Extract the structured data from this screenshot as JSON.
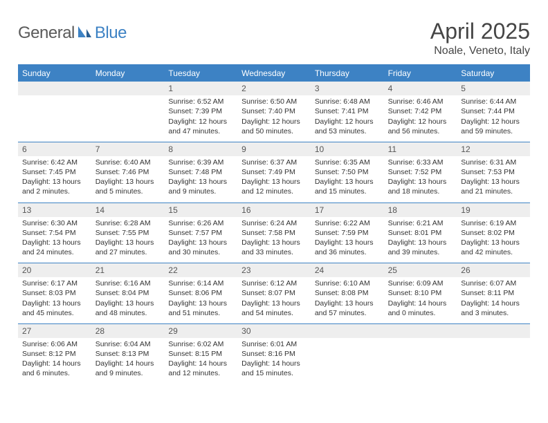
{
  "brand": {
    "part1": "General",
    "part2": "Blue"
  },
  "title": "April 2025",
  "location": "Noale, Veneto, Italy",
  "colors": {
    "accent": "#3d82c4",
    "header_gray": "#eeeeee",
    "text": "#333333",
    "muted": "#555555"
  },
  "weekday_labels": [
    "Sunday",
    "Monday",
    "Tuesday",
    "Wednesday",
    "Thursday",
    "Friday",
    "Saturday"
  ],
  "weeks": [
    [
      {
        "n": "",
        "t": ""
      },
      {
        "n": "",
        "t": ""
      },
      {
        "n": "1",
        "t": "Sunrise: 6:52 AM\nSunset: 7:39 PM\nDaylight: 12 hours and 47 minutes."
      },
      {
        "n": "2",
        "t": "Sunrise: 6:50 AM\nSunset: 7:40 PM\nDaylight: 12 hours and 50 minutes."
      },
      {
        "n": "3",
        "t": "Sunrise: 6:48 AM\nSunset: 7:41 PM\nDaylight: 12 hours and 53 minutes."
      },
      {
        "n": "4",
        "t": "Sunrise: 6:46 AM\nSunset: 7:42 PM\nDaylight: 12 hours and 56 minutes."
      },
      {
        "n": "5",
        "t": "Sunrise: 6:44 AM\nSunset: 7:44 PM\nDaylight: 12 hours and 59 minutes."
      }
    ],
    [
      {
        "n": "6",
        "t": "Sunrise: 6:42 AM\nSunset: 7:45 PM\nDaylight: 13 hours and 2 minutes."
      },
      {
        "n": "7",
        "t": "Sunrise: 6:40 AM\nSunset: 7:46 PM\nDaylight: 13 hours and 5 minutes."
      },
      {
        "n": "8",
        "t": "Sunrise: 6:39 AM\nSunset: 7:48 PM\nDaylight: 13 hours and 9 minutes."
      },
      {
        "n": "9",
        "t": "Sunrise: 6:37 AM\nSunset: 7:49 PM\nDaylight: 13 hours and 12 minutes."
      },
      {
        "n": "10",
        "t": "Sunrise: 6:35 AM\nSunset: 7:50 PM\nDaylight: 13 hours and 15 minutes."
      },
      {
        "n": "11",
        "t": "Sunrise: 6:33 AM\nSunset: 7:52 PM\nDaylight: 13 hours and 18 minutes."
      },
      {
        "n": "12",
        "t": "Sunrise: 6:31 AM\nSunset: 7:53 PM\nDaylight: 13 hours and 21 minutes."
      }
    ],
    [
      {
        "n": "13",
        "t": "Sunrise: 6:30 AM\nSunset: 7:54 PM\nDaylight: 13 hours and 24 minutes."
      },
      {
        "n": "14",
        "t": "Sunrise: 6:28 AM\nSunset: 7:55 PM\nDaylight: 13 hours and 27 minutes."
      },
      {
        "n": "15",
        "t": "Sunrise: 6:26 AM\nSunset: 7:57 PM\nDaylight: 13 hours and 30 minutes."
      },
      {
        "n": "16",
        "t": "Sunrise: 6:24 AM\nSunset: 7:58 PM\nDaylight: 13 hours and 33 minutes."
      },
      {
        "n": "17",
        "t": "Sunrise: 6:22 AM\nSunset: 7:59 PM\nDaylight: 13 hours and 36 minutes."
      },
      {
        "n": "18",
        "t": "Sunrise: 6:21 AM\nSunset: 8:01 PM\nDaylight: 13 hours and 39 minutes."
      },
      {
        "n": "19",
        "t": "Sunrise: 6:19 AM\nSunset: 8:02 PM\nDaylight: 13 hours and 42 minutes."
      }
    ],
    [
      {
        "n": "20",
        "t": "Sunrise: 6:17 AM\nSunset: 8:03 PM\nDaylight: 13 hours and 45 minutes."
      },
      {
        "n": "21",
        "t": "Sunrise: 6:16 AM\nSunset: 8:04 PM\nDaylight: 13 hours and 48 minutes."
      },
      {
        "n": "22",
        "t": "Sunrise: 6:14 AM\nSunset: 8:06 PM\nDaylight: 13 hours and 51 minutes."
      },
      {
        "n": "23",
        "t": "Sunrise: 6:12 AM\nSunset: 8:07 PM\nDaylight: 13 hours and 54 minutes."
      },
      {
        "n": "24",
        "t": "Sunrise: 6:10 AM\nSunset: 8:08 PM\nDaylight: 13 hours and 57 minutes."
      },
      {
        "n": "25",
        "t": "Sunrise: 6:09 AM\nSunset: 8:10 PM\nDaylight: 14 hours and 0 minutes."
      },
      {
        "n": "26",
        "t": "Sunrise: 6:07 AM\nSunset: 8:11 PM\nDaylight: 14 hours and 3 minutes."
      }
    ],
    [
      {
        "n": "27",
        "t": "Sunrise: 6:06 AM\nSunset: 8:12 PM\nDaylight: 14 hours and 6 minutes."
      },
      {
        "n": "28",
        "t": "Sunrise: 6:04 AM\nSunset: 8:13 PM\nDaylight: 14 hours and 9 minutes."
      },
      {
        "n": "29",
        "t": "Sunrise: 6:02 AM\nSunset: 8:15 PM\nDaylight: 14 hours and 12 minutes."
      },
      {
        "n": "30",
        "t": "Sunrise: 6:01 AM\nSunset: 8:16 PM\nDaylight: 14 hours and 15 minutes."
      },
      {
        "n": "",
        "t": ""
      },
      {
        "n": "",
        "t": ""
      },
      {
        "n": "",
        "t": ""
      }
    ]
  ]
}
